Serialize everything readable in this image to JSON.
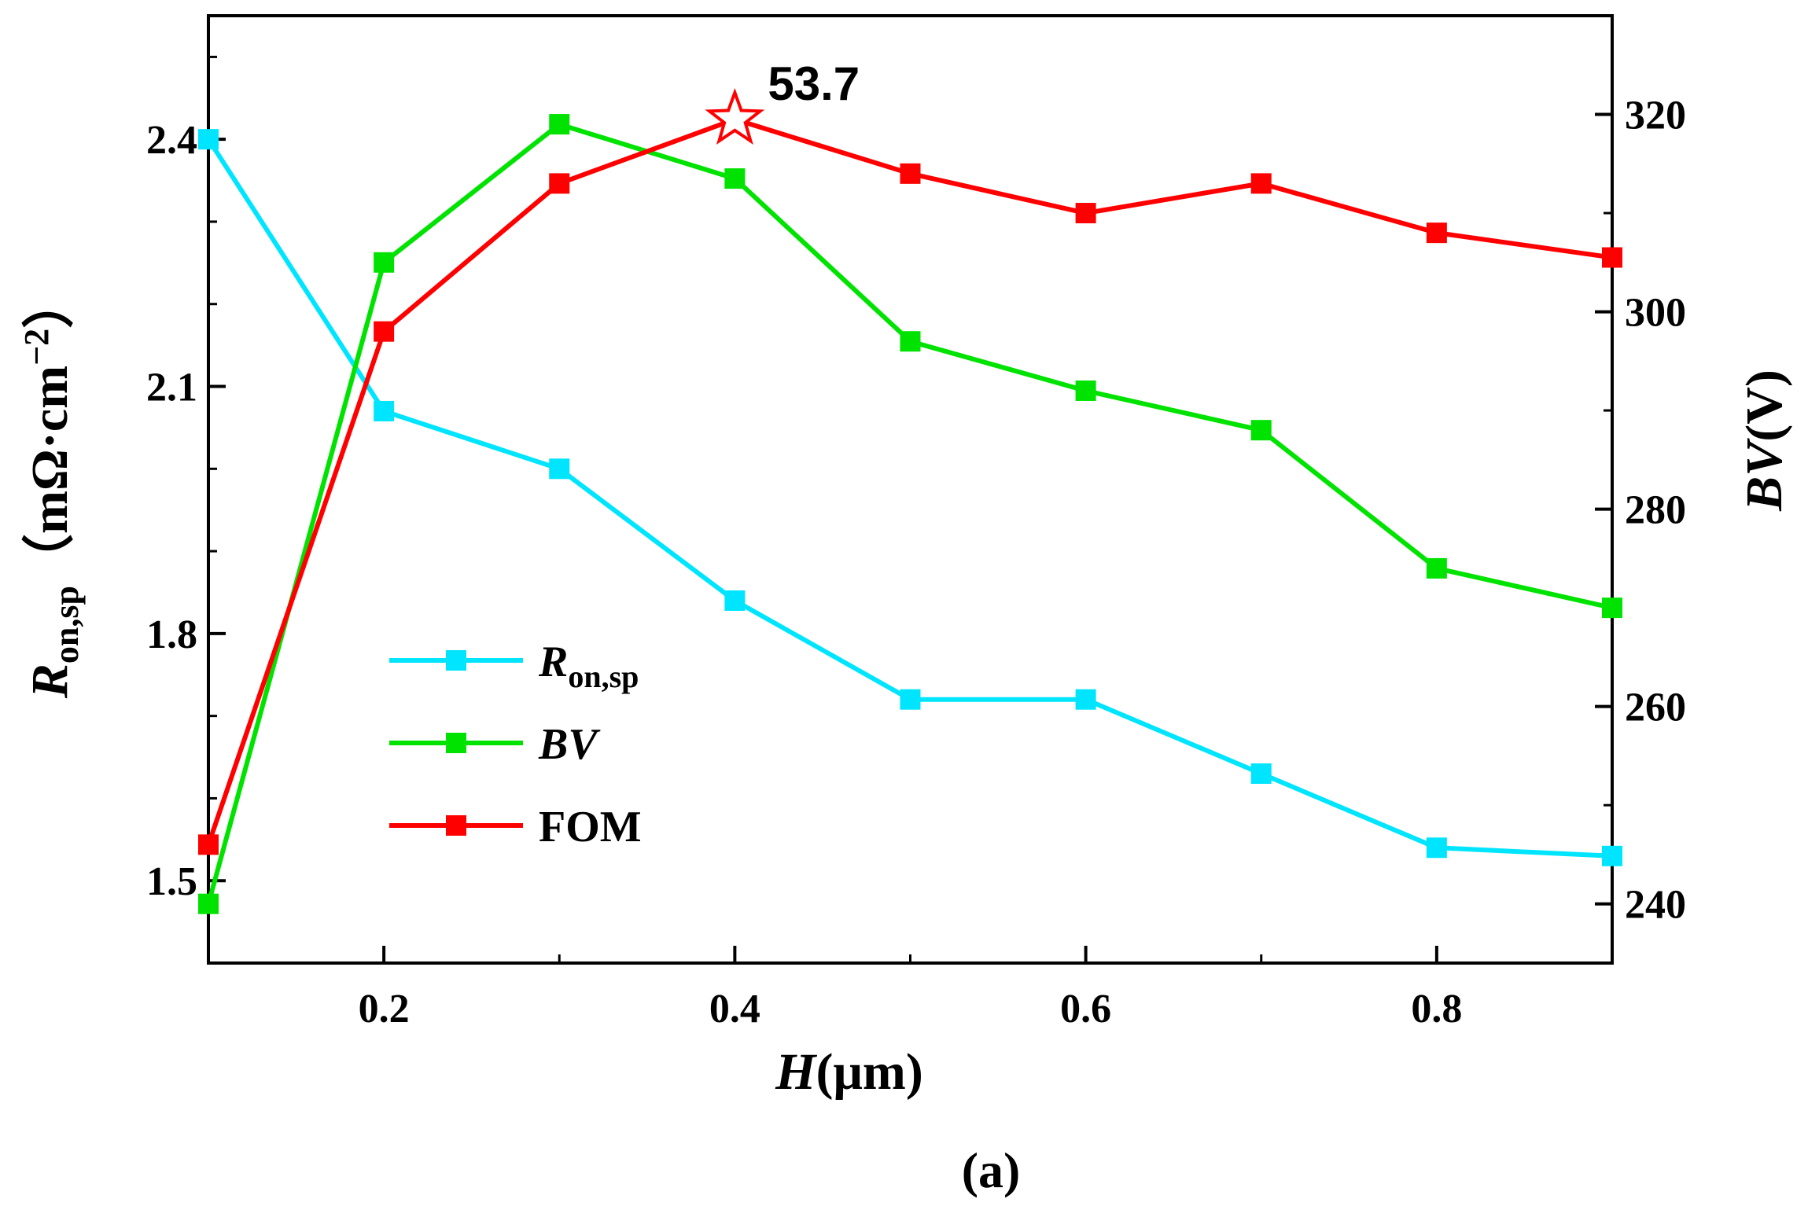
{
  "chart_data": {
    "type": "line",
    "x": [
      0.1,
      0.2,
      0.3,
      0.4,
      0.5,
      0.6,
      0.7,
      0.8,
      0.9
    ],
    "xlim": [
      0.1,
      0.9
    ],
    "xticks": [
      "0.2",
      "0.4",
      "0.6",
      "0.8"
    ],
    "xticks_values": [
      0.2,
      0.4,
      0.6,
      0.8
    ],
    "xlabel": {
      "italic": "H",
      "rest": "(μm)"
    },
    "ylabel_left": {
      "italic": "R",
      "sub": "on,sp",
      "rest": "（mΩ·cm",
      "sup": "−2",
      "close": "）"
    },
    "ylabel_right": {
      "italic": "BV",
      "rest": "(V)"
    },
    "ylim_left": [
      1.4,
      2.55
    ],
    "ylim_right": [
      234,
      330
    ],
    "yticks_left": [
      "1.5",
      "1.8",
      "2.1",
      "2.4"
    ],
    "yticks_left_values": [
      1.5,
      1.8,
      2.1,
      2.4
    ],
    "yticks_right": [
      "240",
      "260",
      "280",
      "300",
      "320"
    ],
    "yticks_right_values": [
      240,
      260,
      280,
      300,
      320
    ],
    "series": [
      {
        "name_italic": "R",
        "name_sub": "on,sp",
        "axis": "left",
        "color": "#00e5ff",
        "values": [
          2.4,
          2.07,
          2.0,
          1.84,
          1.72,
          1.72,
          1.63,
          1.54,
          1.53
        ]
      },
      {
        "name_italic": "BV",
        "name_sub": "",
        "axis": "right",
        "color": "#00e300",
        "values": [
          240,
          305,
          319,
          313.5,
          297,
          292,
          288,
          274,
          270
        ]
      },
      {
        "name": "FOM",
        "axis": "right",
        "color": "#ff0000",
        "values": [
          246,
          298,
          313,
          319.5,
          314,
          310,
          313,
          308,
          305.5
        ]
      }
    ],
    "annotation": {
      "text": "53.7",
      "x": 0.4,
      "series": "FOM",
      "marker": "star"
    },
    "caption": "(a)"
  }
}
